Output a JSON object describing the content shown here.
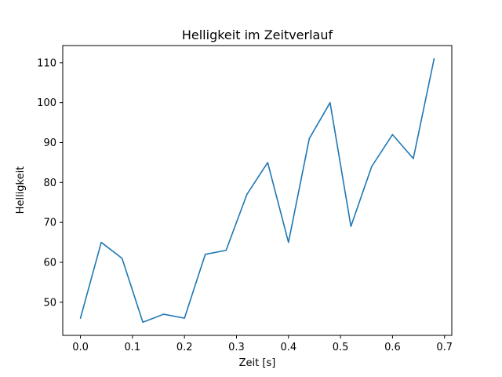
{
  "chart_data": {
    "type": "line",
    "title": "Helligkeit im Zeitverlauf",
    "xlabel": "Zeit [s]",
    "ylabel": "Helligkeit",
    "x": [
      0.0,
      0.04,
      0.08,
      0.12,
      0.16,
      0.2,
      0.24,
      0.28,
      0.32,
      0.36,
      0.4,
      0.44,
      0.48,
      0.52,
      0.56,
      0.6,
      0.64,
      0.68
    ],
    "y": [
      46,
      65,
      61,
      45,
      47,
      46,
      62,
      63,
      77,
      85,
      65,
      91,
      100,
      69,
      84,
      92,
      86,
      111
    ],
    "xlim": [
      -0.034,
      0.714
    ],
    "ylim": [
      41.7,
      114.3
    ],
    "xticks": [
      0.0,
      0.1,
      0.2,
      0.3,
      0.4,
      0.5,
      0.6,
      0.7
    ],
    "xtick_labels": [
      "0.0",
      "0.1",
      "0.2",
      "0.3",
      "0.4",
      "0.5",
      "0.6",
      "0.7"
    ],
    "yticks": [
      50,
      60,
      70,
      80,
      90,
      100,
      110
    ],
    "ytick_labels": [
      "50",
      "60",
      "70",
      "80",
      "90",
      "100",
      "110"
    ],
    "line_color": "#1f77b4",
    "spine_color": "#000000",
    "grid": false,
    "legend": null
  }
}
